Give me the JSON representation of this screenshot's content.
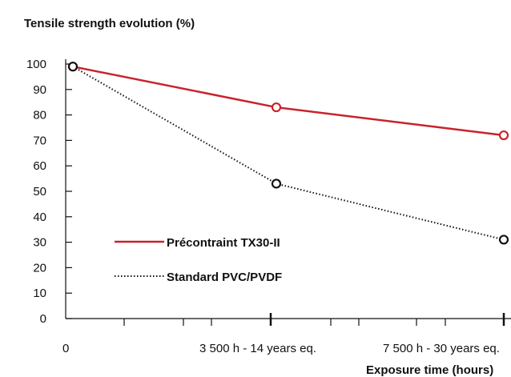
{
  "chart_data": {
    "type": "line",
    "title": "Tensile strength evolution (%)",
    "xlabel": "Exposure time (hours)",
    "ylabel": "",
    "x": [
      0,
      3500,
      7500
    ],
    "x_tick_labels": [
      "0",
      "3 500 h - 14 years eq.",
      "7 500 h - 30 years eq."
    ],
    "y_ticks": [
      0,
      10,
      20,
      30,
      40,
      50,
      60,
      70,
      80,
      90,
      100
    ],
    "ylim": [
      0,
      100
    ],
    "grid": false,
    "legend_position": "bottom-left",
    "series": [
      {
        "name": "Précontraint TX30-II",
        "values": [
          99,
          83,
          72
        ],
        "color": "#c8232c",
        "style": "solid"
      },
      {
        "name": "Standard PVC/PVDF",
        "values": [
          99,
          53,
          31
        ],
        "color": "#111111",
        "style": "dotted"
      }
    ]
  }
}
